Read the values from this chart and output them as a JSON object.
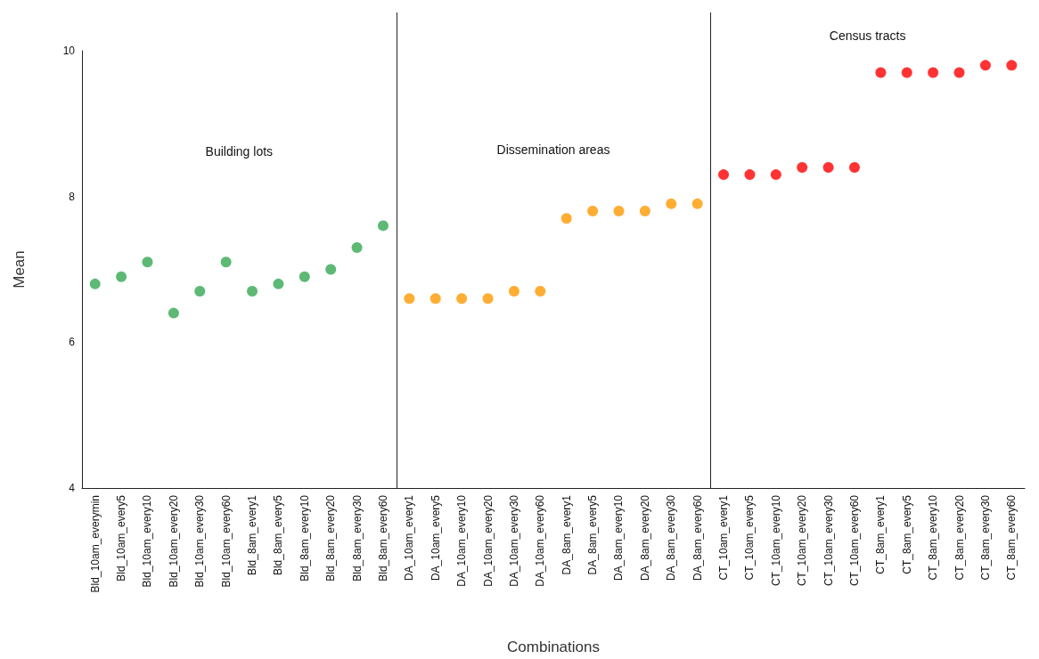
{
  "chart_data": {
    "type": "scatter",
    "xlabel": "Combinations",
    "ylabel": "Mean",
    "annotations": [
      "Building lots",
      "Dissemination areas",
      "Census tracts"
    ],
    "categories": [
      "Bld_10am_everymin",
      "Bld_10am_every5",
      "Bld_10am_every10",
      "Bld_10am_every20",
      "Bld_10am_every30",
      "Bld_10am_every60",
      "Bld_8am_every1",
      "Bld_8am_every5",
      "Bld_8am_every10",
      "Bld_8am_every20",
      "Bld_8am_every30",
      "Bld_8am_every60",
      "DA_10am_every1",
      "DA_10am_every5",
      "DA_10am_every10",
      "DA_10am_every20",
      "DA_10am_every30",
      "DA_10am_every60",
      "DA_8am_every1",
      "DA_8am_every5",
      "DA_8am_every10",
      "DA_8am_every20",
      "DA_8am_every30",
      "DA_8am_every60",
      "CT_10am_every1",
      "CT_10am_every5",
      "CT_10am_every10",
      "CT_10am_every20",
      "CT_10am_every30",
      "CT_10am_every60",
      "CT_8am_every1",
      "CT_8am_every5",
      "CT_8am_every10",
      "CT_8am_every20",
      "CT_8am_every30",
      "CT_8am_every60"
    ],
    "series": [
      {
        "color": "#34a853",
        "values": [
          6.8,
          6.9,
          7.1,
          6.4,
          6.7,
          7.1,
          6.7,
          6.8,
          6.9,
          7.0,
          7.3,
          7.6,
          null,
          null,
          null,
          null,
          null,
          null,
          null,
          null,
          null,
          null,
          null,
          null,
          null,
          null,
          null,
          null,
          null,
          null,
          null,
          null,
          null,
          null,
          null,
          null
        ]
      },
      {
        "color": "#ff9900",
        "values": [
          null,
          null,
          null,
          null,
          null,
          null,
          null,
          null,
          null,
          null,
          null,
          null,
          6.6,
          6.6,
          6.6,
          6.6,
          6.7,
          6.7,
          7.7,
          7.8,
          7.8,
          7.8,
          7.9,
          7.9,
          null,
          null,
          null,
          null,
          null,
          null,
          null,
          null,
          null,
          null,
          null,
          null
        ]
      },
      {
        "color": "#ff0000",
        "values": [
          null,
          null,
          null,
          null,
          null,
          null,
          null,
          null,
          null,
          null,
          null,
          null,
          null,
          null,
          null,
          null,
          null,
          null,
          null,
          null,
          null,
          null,
          null,
          null,
          8.3,
          8.3,
          8.3,
          8.4,
          8.4,
          8.4,
          9.7,
          9.7,
          9.7,
          9.7,
          9.8,
          9.8
        ]
      }
    ],
    "ylim": [
      4,
      10
    ],
    "yticks": [
      4,
      6,
      8,
      10
    ],
    "grid": false,
    "marker": "circle"
  }
}
